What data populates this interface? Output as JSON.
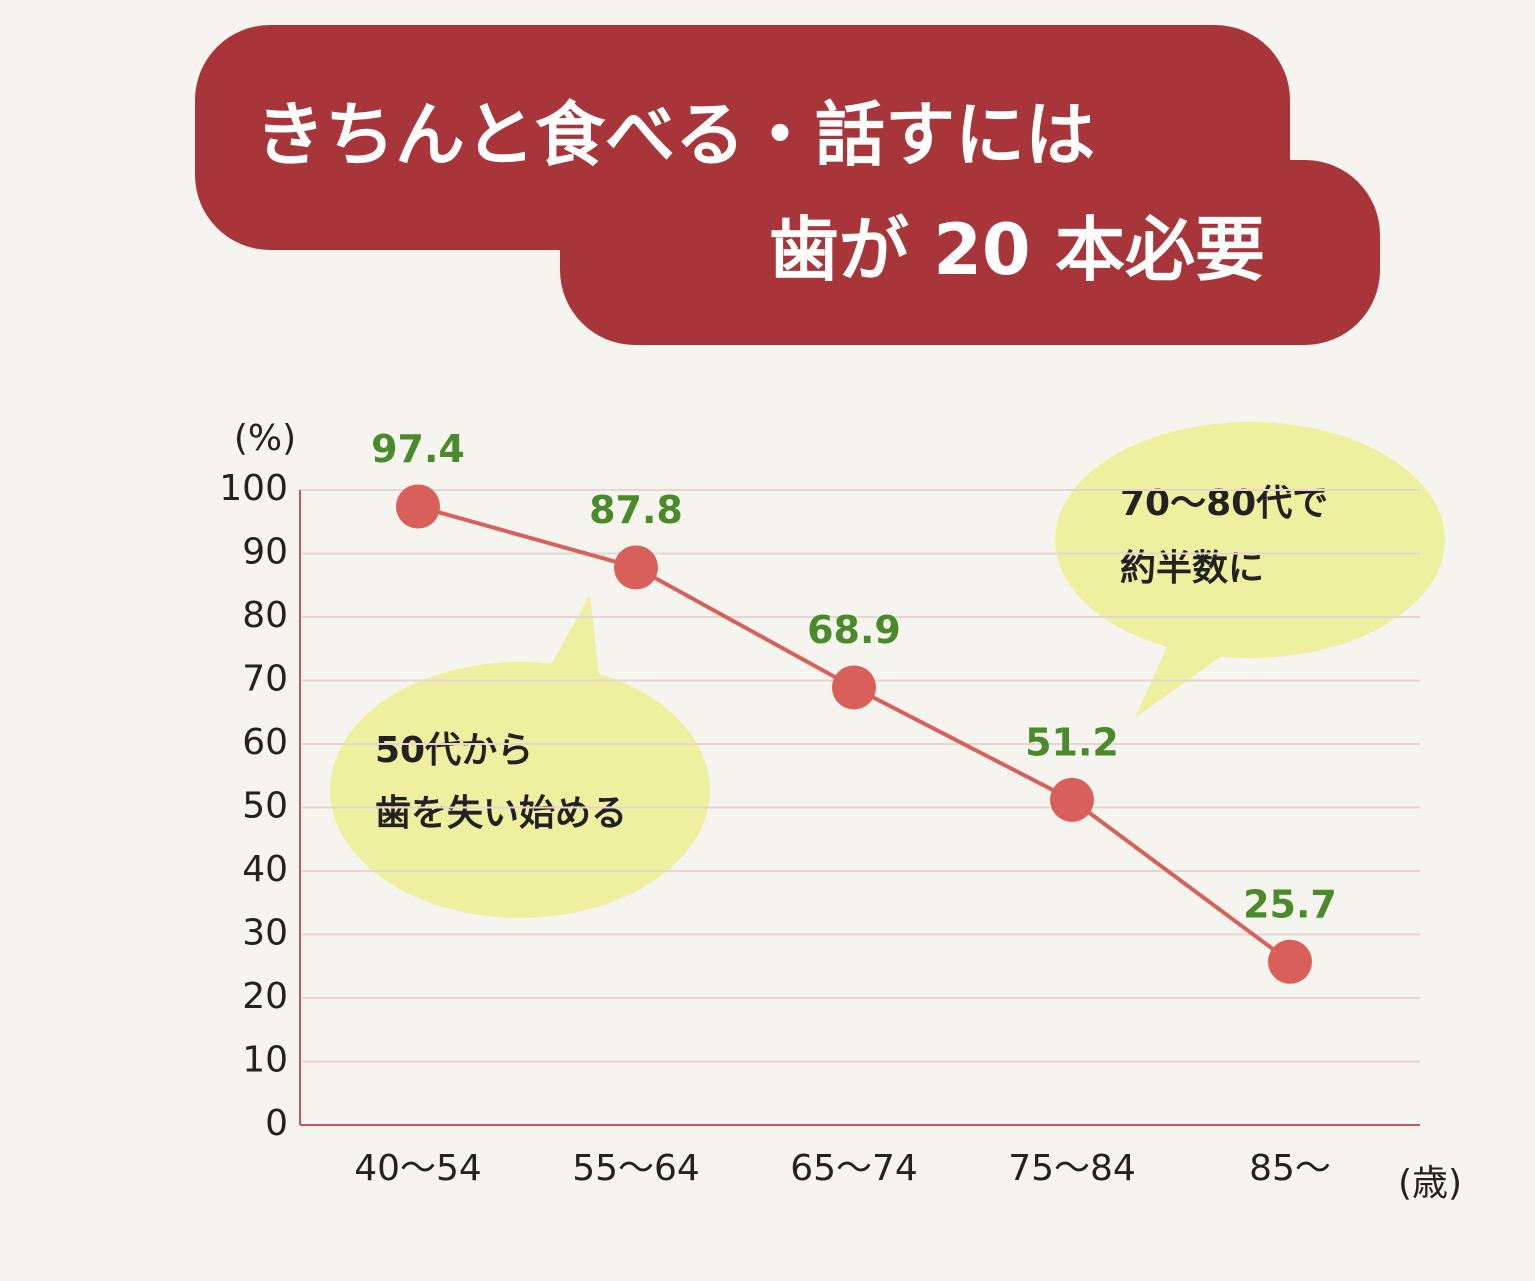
{
  "chart_data": {
    "type": "line",
    "title": [
      "きちんと食べる・話すには",
      "歯が 20 本必要"
    ],
    "y_label": "(%)",
    "x_label": "(歳)",
    "categories": [
      "40〜54",
      "55〜64",
      "65〜74",
      "75〜84",
      "85〜"
    ],
    "series": [
      {
        "name": null,
        "color": "#d9605a",
        "values": [
          97.4,
          87.8,
          68.9,
          51.2,
          25.7
        ]
      }
    ],
    "value_label_color": "#4a8a2a",
    "ylim": [
      0,
      100
    ],
    "yticks": [
      0,
      10,
      20,
      30,
      40,
      50,
      60,
      70,
      80,
      90,
      100
    ],
    "grid": true,
    "annotations": [
      [
        "50代から",
        "歯を失い始める"
      ],
      [
        "70〜80代で",
        "約半数に"
      ]
    ]
  }
}
